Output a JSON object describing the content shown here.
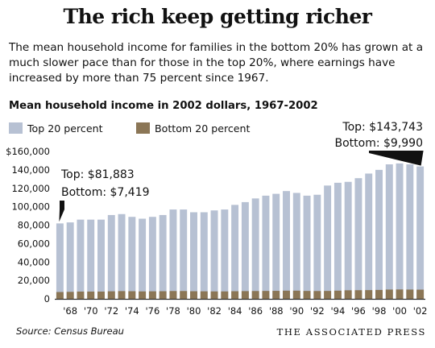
{
  "header": {
    "title": "The rich keep getting richer",
    "subtitle": "The mean household income for families in the bottom 20% has grown at a much slower pace than for those in the top 20%, where earnings have increased by more than 75 percent since 1967."
  },
  "footer": {
    "source": "Source: Census Bureau",
    "credit": "THE ASSOCIATED PRESS"
  },
  "colors": {
    "top": "#b7c1d3",
    "bottom": "#8b7656",
    "axis": "#333333"
  },
  "annotations": {
    "first_top": "Top: $81,883",
    "first_bottom": "Bottom: $7,419",
    "last_top": "Top: $143,743",
    "last_bottom": "Bottom: $9,990"
  },
  "chart_data": {
    "type": "bar",
    "title": "Mean household income in 2002 dollars, 1967-2002",
    "xlabel": "",
    "ylabel": "",
    "ylim": [
      0,
      160000
    ],
    "yticks": [
      0,
      20000,
      40000,
      60000,
      80000,
      100000,
      120000,
      140000,
      160000
    ],
    "ytick_labels": [
      "0",
      "20,000",
      "40,000",
      "60,000",
      "80,000",
      "100,000",
      "120,000",
      "140,000",
      "$160,000"
    ],
    "categories": [
      "1967",
      "1968",
      "1969",
      "1970",
      "1971",
      "1972",
      "1973",
      "1974",
      "1975",
      "1976",
      "1977",
      "1978",
      "1979",
      "1980",
      "1981",
      "1982",
      "1983",
      "1984",
      "1985",
      "1986",
      "1987",
      "1988",
      "1989",
      "1990",
      "1991",
      "1992",
      "1993",
      "1994",
      "1995",
      "1996",
      "1997",
      "1998",
      "1999",
      "2000",
      "2001",
      "2002"
    ],
    "xtick_labels": [
      "'68",
      "'70",
      "'72",
      "'74",
      "'76",
      "'78",
      "'80",
      "'82",
      "'84",
      "'86",
      "'88",
      "'90",
      "'92",
      "'94",
      "'96",
      "'98",
      "'00",
      "'02"
    ],
    "legend_position": "top-left",
    "grid": false,
    "series": [
      {
        "name": "Top 20 percent",
        "values": [
          81883,
          83000,
          86000,
          86000,
          86000,
          91000,
          92000,
          89000,
          87000,
          89000,
          91000,
          97000,
          97000,
          94000,
          94000,
          96000,
          97000,
          102000,
          105000,
          109000,
          112000,
          114000,
          117000,
          115000,
          112000,
          113000,
          123000,
          126000,
          127000,
          131000,
          136000,
          140000,
          146000,
          147000,
          146000,
          143743
        ]
      },
      {
        "name": "Bottom 20 percent",
        "values": [
          7419,
          7600,
          7900,
          7900,
          7900,
          8200,
          8400,
          8300,
          8100,
          8200,
          8300,
          8500,
          8500,
          8300,
          8200,
          8100,
          8100,
          8300,
          8400,
          8500,
          8600,
          8700,
          8900,
          8900,
          8600,
          8500,
          8600,
          8900,
          9300,
          9400,
          9500,
          9700,
          10100,
          10200,
          10100,
          9990
        ]
      }
    ]
  }
}
